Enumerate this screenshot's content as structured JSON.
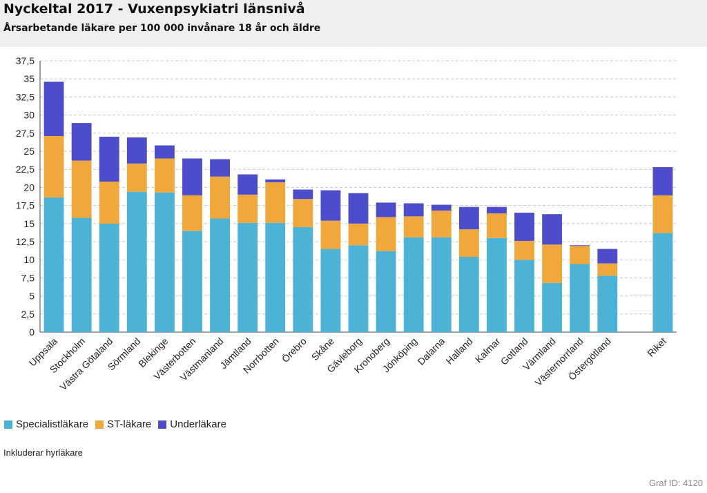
{
  "header": {
    "title": "Nyckeltal 2017 - Vuxenpsykiatri länsnivå",
    "subtitle": "Årsarbetande läkare per 100 000 invånare 18 år och äldre"
  },
  "note": "Inkluderar hyrläkare",
  "graf_id": "Graf ID: 4120",
  "colors": {
    "Specialistläkare": "#4db3d6",
    "ST-läkare": "#f0a83c",
    "Underläkare": "#4d4dcc",
    "grid": "#c8c8c8",
    "axis": "#444444"
  },
  "chart_data": {
    "type": "bar",
    "stacked": true,
    "title": "Nyckeltal 2017 - Vuxenpsykiatri länsnivå",
    "subtitle": "Årsarbetande läkare per 100 000 invånare 18 år och äldre",
    "xlabel": "",
    "ylabel": "",
    "ylim": [
      0,
      37.5
    ],
    "yticks": [
      "0",
      "2,5",
      "5",
      "7,5",
      "10",
      "12,5",
      "15",
      "17,5",
      "20",
      "22,5",
      "25",
      "27,5",
      "30",
      "32,5",
      "35",
      "37,5"
    ],
    "ytick_values": [
      0,
      2.5,
      5,
      7.5,
      10,
      12.5,
      15,
      17.5,
      20,
      22.5,
      25,
      27.5,
      30,
      32.5,
      35,
      37.5
    ],
    "grid": true,
    "legend_position": "bottom-left",
    "categories": [
      "Uppsala",
      "Stockholm",
      "Västra Götaland",
      "Sörmland",
      "Blekinge",
      "Västerbotten",
      "Västmanland",
      "Jämtland",
      "Norrbotten",
      "Örebro",
      "Skåne",
      "Gävleborg",
      "Kronoberg",
      "Jönköping",
      "Dalarna",
      "Halland",
      "Kalmar",
      "Gotland",
      "Värmland",
      "Västernorrland",
      "Östergötland",
      "",
      "Riket"
    ],
    "series": [
      {
        "name": "Specialistläkare",
        "values": [
          18.6,
          15.8,
          15.0,
          19.4,
          19.3,
          14.0,
          15.7,
          15.1,
          15.1,
          14.5,
          11.5,
          12.0,
          11.2,
          13.1,
          13.1,
          10.4,
          13.0,
          10.0,
          6.8,
          9.4,
          7.8,
          null,
          13.7
        ]
      },
      {
        "name": "ST-läkare",
        "values": [
          8.5,
          7.9,
          5.8,
          3.9,
          4.7,
          4.9,
          5.8,
          3.9,
          5.6,
          3.9,
          3.9,
          3.0,
          4.7,
          2.9,
          3.7,
          3.8,
          3.4,
          2.6,
          5.3,
          2.5,
          1.7,
          null,
          5.2
        ]
      },
      {
        "name": "Underläkare",
        "values": [
          7.5,
          5.2,
          6.2,
          3.6,
          1.8,
          5.1,
          2.4,
          2.8,
          0.4,
          1.3,
          4.2,
          4.2,
          2.0,
          1.8,
          0.8,
          3.1,
          0.9,
          3.9,
          4.2,
          0.1,
          2.0,
          null,
          3.9
        ]
      }
    ]
  }
}
